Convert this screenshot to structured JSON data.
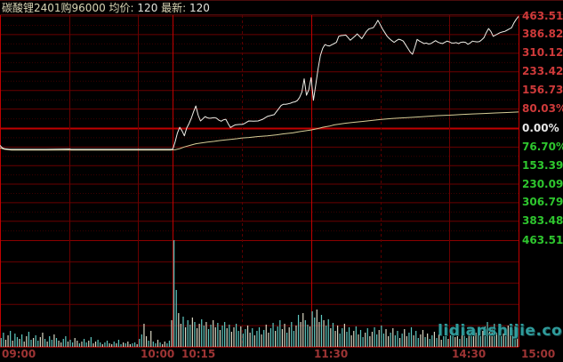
{
  "title_bar": {
    "instrument": "碳酸锂2401购96000",
    "avg_label": "均价:",
    "avg_value": "120",
    "last_label": "最新:",
    "last_value": "120"
  },
  "watermark": "lidianshijie.com",
  "colors": {
    "background": "#000000",
    "grid_bright": "#c00000",
    "grid_minor": "#6a0000",
    "grid_dashed": "#5c0000",
    "grid_dotted": "#3c0000",
    "zero_line": "#c00000",
    "price_line": "#f0efe8",
    "avg_line": "#d6cd96",
    "volume_pale": "#d9d6c2",
    "volume_cyan": "#5ec7c0",
    "up_label": "#cf3a3a",
    "zero_label": "#e8e8e8",
    "down_label": "#2ec62e",
    "time_label": "#9e3434",
    "title_text": "#d8d4b4",
    "watermark": "#2f9b9b"
  },
  "chart_data": {
    "type": "line",
    "title": "碳酸锂2401购96000 均价: 120 最新: 120",
    "x_axis": {
      "unit": "minutes of trading session",
      "total_minutes": 225,
      "labels": [
        {
          "label": "09:00",
          "minute": 0,
          "dx": 2
        },
        {
          "label": "10:00",
          "minute": 60,
          "dx": 3
        },
        {
          "label": "10:15",
          "minute": 75,
          "dx": 10
        },
        {
          "label": "11:30",
          "minute": 135,
          "dx": 3
        },
        {
          "label": "14:30",
          "minute": 195,
          "dx": 3
        },
        {
          "label": "15:00",
          "minute": 225,
          "dx": 3
        }
      ],
      "v_gridlines": [
        {
          "minute": 30,
          "style": "minor"
        },
        {
          "minute": 60,
          "style": "minor"
        },
        {
          "minute": 75,
          "style": "session"
        },
        {
          "minute": 105,
          "style": "dashed"
        },
        {
          "minute": 135,
          "style": "session"
        },
        {
          "minute": 165,
          "style": "dashed"
        },
        {
          "minute": 195,
          "style": "minor"
        }
      ]
    },
    "y_axis": {
      "unit": "percent change",
      "range": [
        -463.51,
        463.51
      ],
      "ticks": [
        {
          "label": "463.51%",
          "pct": 463.51,
          "cls": "y-up"
        },
        {
          "label": "386.82%",
          "pct": 386.82,
          "cls": "y-up"
        },
        {
          "label": "310.12%",
          "pct": 310.12,
          "cls": "y-up"
        },
        {
          "label": "233.42%",
          "pct": 233.42,
          "cls": "y-up"
        },
        {
          "label": "156.73%",
          "pct": 156.73,
          "cls": "y-up"
        },
        {
          "label": "80.03%",
          "pct": 80.03,
          "cls": "y-up"
        },
        {
          "label": "0.00%",
          "pct": 0,
          "cls": "y-zero"
        },
        {
          "label": "76.70%",
          "pct": -76.7,
          "cls": "y-down"
        },
        {
          "label": "153.39%",
          "pct": -153.39,
          "cls": "y-down"
        },
        {
          "label": "230.09%",
          "pct": -230.09,
          "cls": "y-down"
        },
        {
          "label": "306.79%",
          "pct": -306.79,
          "cls": "y-down"
        },
        {
          "label": "383.48%",
          "pct": -383.48,
          "cls": "y-down"
        },
        {
          "label": "463.51%",
          "pct": -463.51,
          "cls": "y-down"
        }
      ]
    },
    "series": [
      {
        "name": "price",
        "points": [
          [
            0,
            -70
          ],
          [
            1,
            -80
          ],
          [
            2,
            -84
          ],
          [
            4,
            -86
          ],
          [
            10,
            -86
          ],
          [
            20,
            -86
          ],
          [
            30,
            -84.5
          ],
          [
            31,
            -86
          ],
          [
            40,
            -86
          ],
          [
            50,
            -86
          ],
          [
            60,
            -86
          ],
          [
            70,
            -86
          ],
          [
            74,
            -86
          ],
          [
            75,
            -85
          ],
          [
            76,
            -55
          ],
          [
            77,
            -18
          ],
          [
            78,
            5
          ],
          [
            79,
            -10
          ],
          [
            80,
            -30
          ],
          [
            81,
            2
          ],
          [
            82,
            20
          ],
          [
            83,
            42
          ],
          [
            84,
            70
          ],
          [
            85,
            93
          ],
          [
            86,
            55
          ],
          [
            87,
            31
          ],
          [
            88,
            40
          ],
          [
            89,
            49
          ],
          [
            90,
            44
          ],
          [
            91,
            42
          ],
          [
            93,
            45
          ],
          [
            94,
            42
          ],
          [
            95,
            34
          ],
          [
            96,
            30
          ],
          [
            97,
            36
          ],
          [
            98,
            38
          ],
          [
            99,
            20
          ],
          [
            100,
            4
          ],
          [
            101,
            10
          ],
          [
            102,
            15
          ],
          [
            103,
            16
          ],
          [
            104,
            17
          ],
          [
            105,
            17
          ],
          [
            106,
            20
          ],
          [
            107,
            26
          ],
          [
            108,
            31
          ],
          [
            110,
            30
          ],
          [
            112,
            31
          ],
          [
            114,
            38
          ],
          [
            116,
            50
          ],
          [
            118,
            55
          ],
          [
            119,
            57
          ],
          [
            120,
            70
          ],
          [
            121,
            82
          ],
          [
            122,
            95
          ],
          [
            123,
            100
          ],
          [
            124,
            100
          ],
          [
            125,
            102
          ],
          [
            126,
            104
          ],
          [
            127,
            108
          ],
          [
            128,
            110
          ],
          [
            129,
            115
          ],
          [
            130,
            128
          ],
          [
            131,
            150
          ],
          [
            132,
            205
          ],
          [
            133,
            137
          ],
          [
            134,
            160
          ],
          [
            135,
            210
          ],
          [
            136,
            116
          ],
          [
            137,
            180
          ],
          [
            138,
            245
          ],
          [
            139,
            300
          ],
          [
            140,
            330
          ],
          [
            141,
            346
          ],
          [
            142,
            342
          ],
          [
            143,
            340
          ],
          [
            144,
            345
          ],
          [
            145,
            350
          ],
          [
            146,
            355
          ],
          [
            147,
            380
          ],
          [
            148,
            383
          ],
          [
            149,
            384
          ],
          [
            150,
            385
          ],
          [
            151,
            375
          ],
          [
            152,
            364
          ],
          [
            153,
            372
          ],
          [
            154,
            380
          ],
          [
            155,
            390
          ],
          [
            156,
            380
          ],
          [
            157,
            370
          ],
          [
            158,
            385
          ],
          [
            159,
            400
          ],
          [
            160,
            410
          ],
          [
            161,
            413
          ],
          [
            162,
            416
          ],
          [
            163,
            430
          ],
          [
            164,
            446
          ],
          [
            165,
            428
          ],
          [
            166,
            410
          ],
          [
            167,
            395
          ],
          [
            168,
            380
          ],
          [
            169,
            370
          ],
          [
            170,
            362
          ],
          [
            171,
            355
          ],
          [
            172,
            362
          ],
          [
            173,
            368
          ],
          [
            174,
            365
          ],
          [
            175,
            360
          ],
          [
            176,
            345
          ],
          [
            177,
            330
          ],
          [
            178,
            315
          ],
          [
            179,
            306
          ],
          [
            180,
            335
          ],
          [
            181,
            367
          ],
          [
            182,
            360
          ],
          [
            183,
            355
          ],
          [
            184,
            350
          ],
          [
            185,
            352
          ],
          [
            186,
            348
          ],
          [
            187,
            350
          ],
          [
            188,
            356
          ],
          [
            189,
            362
          ],
          [
            190,
            356
          ],
          [
            191,
            352
          ],
          [
            192,
            350
          ],
          [
            193,
            355
          ],
          [
            194,
            360
          ],
          [
            195,
            357
          ],
          [
            196,
            352
          ],
          [
            197,
            352
          ],
          [
            198,
            354
          ],
          [
            199,
            350
          ],
          [
            200,
            355
          ],
          [
            201,
            356
          ],
          [
            202,
            355
          ],
          [
            203,
            347
          ],
          [
            204,
            352
          ],
          [
            205,
            360
          ],
          [
            206,
            358
          ],
          [
            207,
            357
          ],
          [
            208,
            358
          ],
          [
            209,
            365
          ],
          [
            210,
            374
          ],
          [
            211,
            395
          ],
          [
            212,
            412
          ],
          [
            213,
            400
          ],
          [
            214,
            380
          ],
          [
            215,
            385
          ],
          [
            216,
            390
          ],
          [
            217,
            395
          ],
          [
            218,
            398
          ],
          [
            219,
            400
          ],
          [
            220,
            405
          ],
          [
            221,
            410
          ],
          [
            222,
            415
          ],
          [
            223,
            435
          ],
          [
            224,
            450
          ],
          [
            225,
            462
          ]
        ]
      },
      {
        "name": "average",
        "points": [
          [
            0,
            -80
          ],
          [
            2,
            -86
          ],
          [
            5,
            -89
          ],
          [
            20,
            -89
          ],
          [
            40,
            -89
          ],
          [
            60,
            -89
          ],
          [
            74,
            -89
          ],
          [
            76,
            -88
          ],
          [
            78,
            -83
          ],
          [
            80,
            -76
          ],
          [
            83,
            -68
          ],
          [
            85,
            -63
          ],
          [
            88,
            -59
          ],
          [
            90,
            -56
          ],
          [
            93,
            -53
          ],
          [
            95,
            -50
          ],
          [
            98,
            -47
          ],
          [
            100,
            -45
          ],
          [
            103,
            -42
          ],
          [
            105,
            -39
          ],
          [
            108,
            -37
          ],
          [
            112,
            -33
          ],
          [
            116,
            -30
          ],
          [
            120,
            -26
          ],
          [
            123,
            -22
          ],
          [
            127,
            -18
          ],
          [
            130,
            -13
          ],
          [
            133,
            -9
          ],
          [
            135,
            -6
          ],
          [
            138,
            0
          ],
          [
            140,
            5
          ],
          [
            143,
            10
          ],
          [
            145,
            15
          ],
          [
            148,
            19
          ],
          [
            150,
            22
          ],
          [
            154,
            26
          ],
          [
            157,
            29
          ],
          [
            161,
            33
          ],
          [
            165,
            37
          ],
          [
            170,
            41
          ],
          [
            175,
            44
          ],
          [
            180,
            47
          ],
          [
            185,
            50
          ],
          [
            190,
            53
          ],
          [
            195,
            55
          ],
          [
            200,
            58
          ],
          [
            205,
            60
          ],
          [
            210,
            62
          ],
          [
            215,
            64
          ],
          [
            220,
            66
          ],
          [
            225,
            68
          ]
        ]
      }
    ],
    "volume": {
      "bar_unit": "1 minute",
      "heights": [
        10,
        16,
        8,
        13,
        18,
        7,
        15,
        11,
        9,
        14,
        6,
        12,
        17,
        8,
        10,
        13,
        7,
        11,
        16,
        9,
        6,
        12,
        8,
        14,
        10,
        7,
        5,
        9,
        12,
        6,
        8,
        5,
        10,
        7,
        4,
        6,
        9,
        5,
        7,
        11,
        4,
        6,
        8,
        5,
        3,
        5,
        7,
        4,
        3,
        6,
        4,
        8,
        3,
        5,
        4,
        6,
        3,
        4,
        5,
        3,
        9,
        14,
        26,
        12,
        7,
        18,
        6,
        4,
        8,
        5,
        3,
        6,
        4,
        7,
        30,
        120,
        64,
        38,
        26,
        34,
        22,
        30,
        25,
        33,
        28,
        21,
        26,
        31,
        24,
        28,
        20,
        25,
        30,
        22,
        27,
        19,
        24,
        28,
        21,
        25,
        17,
        22,
        26,
        18,
        23,
        15,
        20,
        24,
        16,
        21,
        13,
        18,
        22,
        14,
        19,
        25,
        16,
        21,
        27,
        18,
        23,
        30,
        20,
        26,
        16,
        22,
        28,
        18,
        24,
        36,
        28,
        38,
        30,
        25,
        23,
        40,
        33,
        42,
        28,
        36,
        30,
        24,
        31,
        21,
        27,
        18,
        24,
        15,
        21,
        26,
        17,
        22,
        13,
        18,
        23,
        14,
        19,
        11,
        16,
        21,
        12,
        17,
        22,
        14,
        19,
        24,
        15,
        20,
        12,
        16,
        21,
        13,
        18,
        10,
        15,
        20,
        12,
        16,
        22,
        13,
        18,
        10,
        14,
        19,
        11,
        15,
        9,
        13,
        17,
        10,
        14,
        8,
        12,
        16,
        9,
        13,
        18,
        11,
        15,
        9,
        13,
        17,
        10,
        14,
        19,
        12,
        16,
        21,
        13,
        18,
        23,
        28,
        17,
        22,
        26,
        16,
        21,
        25,
        15,
        20,
        24,
        14,
        19,
        23,
        20
      ],
      "color_pattern": "110010110100110110010110100110110010110100110110010110100110110010110100110110010110100110110010110100110110010110100110110010110100110110010110100110110010110100110110010110100110110010110100110110010110100110110010110100110"
    }
  }
}
